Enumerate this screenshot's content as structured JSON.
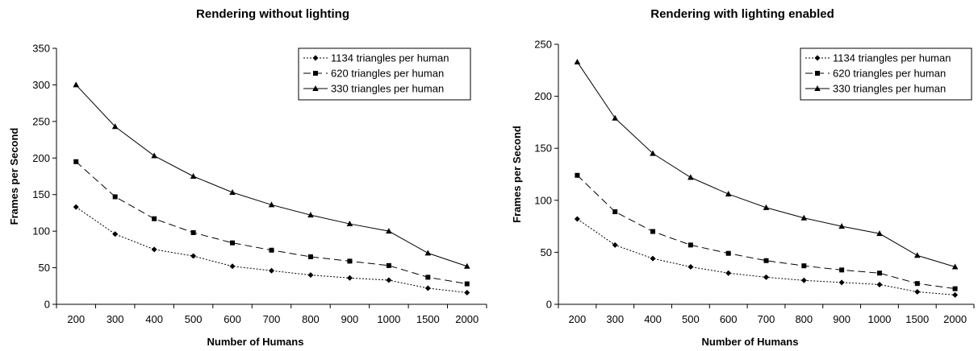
{
  "chart_data": [
    {
      "type": "line",
      "title": "Rendering without lighting",
      "xlabel": "Number of Humans",
      "ylabel": "Frames per Second",
      "categories": [
        "200",
        "300",
        "400",
        "500",
        "600",
        "700",
        "800",
        "900",
        "1000",
        "1500",
        "2000"
      ],
      "ylim": [
        0,
        350
      ],
      "yticks": [
        0,
        50,
        100,
        150,
        200,
        250,
        300,
        350
      ],
      "grid": false,
      "legend_position": "top-right",
      "series": [
        {
          "name": "1134 triangles per human",
          "marker": "diamond",
          "dash": "dotted",
          "values": [
            133,
            96,
            75,
            66,
            52,
            46,
            40,
            36,
            33,
            22,
            16
          ]
        },
        {
          "name": "620 triangles per human",
          "marker": "square",
          "dash": "dashed",
          "values": [
            195,
            147,
            117,
            98,
            84,
            74,
            65,
            59,
            53,
            37,
            28
          ]
        },
        {
          "name": "330 triangles per human",
          "marker": "triangle",
          "dash": "solid",
          "values": [
            300,
            243,
            203,
            175,
            153,
            136,
            122,
            110,
            100,
            70,
            52
          ]
        }
      ]
    },
    {
      "type": "line",
      "title": "Rendering with lighting enabled",
      "xlabel": "Number of Humans",
      "ylabel": "Frames per Second",
      "categories": [
        "200",
        "300",
        "400",
        "500",
        "600",
        "700",
        "800",
        "900",
        "1000",
        "1500",
        "2000"
      ],
      "ylim": [
        0,
        250
      ],
      "yticks": [
        0,
        50,
        100,
        150,
        200,
        250
      ],
      "grid": false,
      "legend_position": "top-right",
      "series": [
        {
          "name": "1134 triangles per human",
          "marker": "diamond",
          "dash": "dotted",
          "values": [
            82,
            57,
            44,
            36,
            30,
            26,
            23,
            21,
            19,
            12,
            9
          ]
        },
        {
          "name": "620 triangles per human",
          "marker": "square",
          "dash": "dashed",
          "values": [
            124,
            89,
            70,
            57,
            49,
            42,
            37,
            33,
            30,
            20,
            15
          ]
        },
        {
          "name": "330 triangles per human",
          "marker": "triangle",
          "dash": "solid",
          "values": [
            233,
            179,
            145,
            122,
            106,
            93,
            83,
            75,
            68,
            47,
            36
          ]
        }
      ]
    }
  ]
}
